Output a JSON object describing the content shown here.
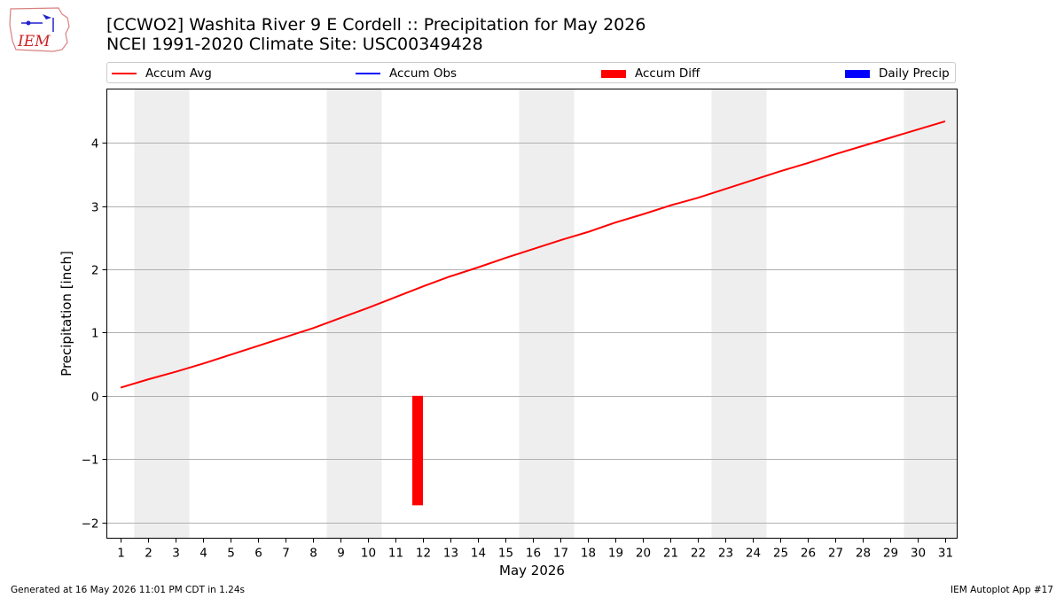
{
  "header": {
    "title": "[CCWO2] Washita River 9 E Cordell :: Precipitation for May 2026",
    "subtitle": "NCEI 1991-2020 Climate Site: USC00349428",
    "logo_text": "IEM"
  },
  "legend": {
    "items": [
      {
        "label": "Accum Avg",
        "color": "#ff0000",
        "kind": "line"
      },
      {
        "label": "Accum Obs",
        "color": "#0000ff",
        "kind": "line"
      },
      {
        "label": "Accum Diff",
        "color": "#ff0000",
        "kind": "box"
      },
      {
        "label": "Daily Precip",
        "color": "#0000ff",
        "kind": "box"
      }
    ]
  },
  "chart_data": {
    "type": "line",
    "xlabel": "May 2026",
    "ylabel": "Precipitation [inch]",
    "x_ticks": [
      1,
      2,
      3,
      4,
      5,
      6,
      7,
      8,
      9,
      10,
      11,
      12,
      13,
      14,
      15,
      16,
      17,
      18,
      19,
      20,
      21,
      22,
      23,
      24,
      25,
      26,
      27,
      28,
      29,
      30,
      31
    ],
    "ylim": [
      -2.25,
      4.85
    ],
    "y_ticks": [
      -2,
      -1,
      0,
      1,
      2,
      3,
      4
    ],
    "y_tick_labels": [
      "−2",
      "−1",
      "0",
      "1",
      "2",
      "3",
      "4"
    ],
    "grid": "horizontal",
    "weekend_shading_days": [
      [
        2,
        3
      ],
      [
        9,
        10
      ],
      [
        16,
        17
      ],
      [
        23,
        24
      ],
      [
        30,
        31
      ]
    ],
    "weekend_color": "#eeeeee",
    "series": [
      {
        "name": "Accum Avg",
        "color": "#ff0000",
        "x": [
          1,
          2,
          3,
          4,
          5,
          6,
          7,
          8,
          9,
          10,
          11,
          12,
          13,
          14,
          15,
          16,
          17,
          18,
          19,
          20,
          21,
          22,
          23,
          24,
          25,
          26,
          27,
          28,
          29,
          30,
          31
        ],
        "values": [
          0.13,
          0.26,
          0.38,
          0.51,
          0.65,
          0.79,
          0.93,
          1.07,
          1.23,
          1.39,
          1.56,
          1.73,
          1.89,
          2.03,
          2.18,
          2.32,
          2.46,
          2.59,
          2.74,
          2.87,
          3.01,
          3.13,
          3.27,
          3.41,
          3.55,
          3.68,
          3.82,
          3.95,
          4.08,
          4.21,
          4.34
        ]
      },
      {
        "name": "Accum Diff",
        "color": "#ff0000",
        "kind": "bar",
        "x": [
          12
        ],
        "values": [
          -1.73
        ]
      }
    ]
  },
  "footer": {
    "generated": "Generated at 16 May 2026 11:01 PM CDT in 1.24s",
    "app": "IEM Autoplot App #17"
  }
}
